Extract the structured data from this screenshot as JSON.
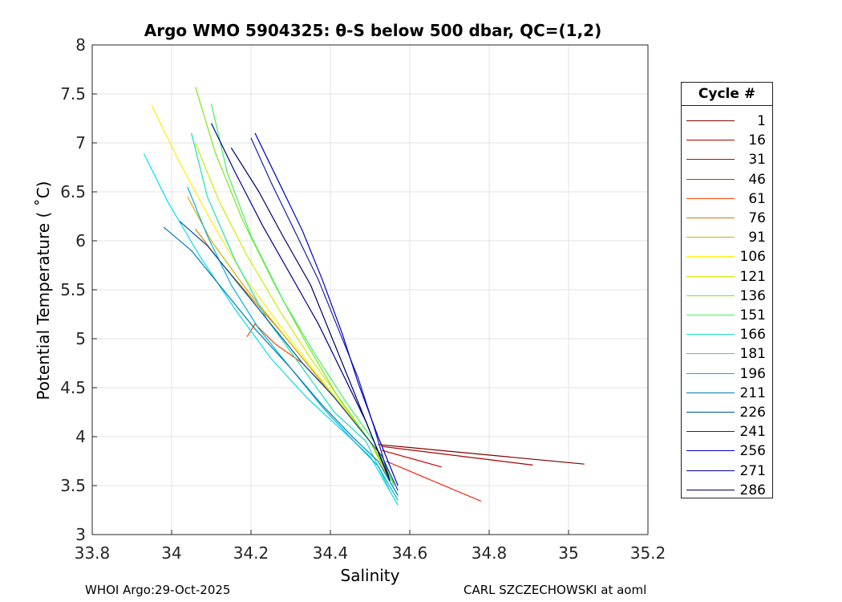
{
  "chart_data": {
    "type": "line",
    "title": "Argo WMO 5904325: θ-S below 500 dbar,  QC=(1,2)",
    "xlabel": "Salinity",
    "ylabel": "Potential Temperature ( ˚C)",
    "xlim": [
      33.8,
      35.2
    ],
    "ylim": [
      3,
      8
    ],
    "xticks": [
      "33.8",
      "34",
      "34.2",
      "34.4",
      "34.6",
      "34.8",
      "35",
      "35.2"
    ],
    "yticks": [
      "3",
      "3.5",
      "4",
      "4.5",
      "5",
      "5.5",
      "6",
      "6.5",
      "7",
      "7.5",
      "8"
    ],
    "grid": true,
    "legend": {
      "title": "Cycle #",
      "placement": "right",
      "entries": [
        {
          "label": "1",
          "color": "#7f0000"
        },
        {
          "label": "16",
          "color": "#a80000"
        },
        {
          "label": "31",
          "color": "#d20000"
        },
        {
          "label": "46",
          "color": "#f81a00"
        },
        {
          "label": "61",
          "color": "#ff4400"
        },
        {
          "label": "76",
          "color": "#d77f00"
        },
        {
          "label": "91",
          "color": "#d4b000"
        },
        {
          "label": "106",
          "color": "#ffee00"
        },
        {
          "label": "121",
          "color": "#c8f000"
        },
        {
          "label": "136",
          "color": "#7fe61a"
        },
        {
          "label": "151",
          "color": "#3ef060"
        },
        {
          "label": "166",
          "color": "#1ae0b4"
        },
        {
          "label": "181",
          "color": "#00e0f0"
        },
        {
          "label": "196",
          "color": "#00b0e0"
        },
        {
          "label": "211",
          "color": "#007cb0"
        },
        {
          "label": "226",
          "color": "#0050a0"
        },
        {
          "label": "241",
          "color": "#1a20b0"
        },
        {
          "label": "256",
          "color": "#0000c8"
        },
        {
          "label": "271",
          "color": "#00008f"
        },
        {
          "label": "286",
          "color": "#000060"
        }
      ]
    },
    "series": [
      {
        "name": "1",
        "color": "#7f0000",
        "x": [
          34.52,
          35.04
        ],
        "y": [
          3.92,
          3.72
        ]
      },
      {
        "name": "16",
        "color": "#a80000",
        "x": [
          34.53,
          34.91
        ],
        "y": [
          3.9,
          3.71
        ]
      },
      {
        "name": "31",
        "color": "#d20000",
        "x": [
          34.53,
          34.68
        ],
        "y": [
          3.86,
          3.69
        ]
      },
      {
        "name": "46",
        "color": "#f81a00",
        "x": [
          34.54,
          34.78
        ],
        "y": [
          3.75,
          3.34
        ]
      },
      {
        "name": "61",
        "color": "#ff4400",
        "x": [
          34.19,
          34.21,
          34.26,
          34.33,
          34.4,
          34.45,
          34.5,
          34.55
        ],
        "y": [
          5.02,
          5.15,
          4.95,
          4.75,
          4.45,
          4.2,
          3.95,
          3.62
        ]
      },
      {
        "name": "76",
        "color": "#d77f00",
        "x": [
          34.06,
          34.12,
          34.2,
          34.28,
          34.36,
          34.44,
          34.5,
          34.55
        ],
        "y": [
          6.12,
          5.8,
          5.42,
          5.05,
          4.65,
          4.25,
          3.95,
          3.6
        ]
      },
      {
        "name": "91",
        "color": "#d4b000",
        "x": [
          34.04,
          34.1,
          34.18,
          34.27,
          34.35,
          34.43,
          34.5,
          34.55
        ],
        "y": [
          6.45,
          6.0,
          5.55,
          5.1,
          4.7,
          4.3,
          3.95,
          3.55
        ]
      },
      {
        "name": "106",
        "color": "#ffee00",
        "x": [
          33.95,
          34.02,
          34.1,
          34.18,
          34.27,
          34.35,
          34.43,
          34.5,
          34.55
        ],
        "y": [
          7.38,
          6.8,
          6.2,
          5.65,
          5.15,
          4.72,
          4.32,
          3.95,
          3.58
        ]
      },
      {
        "name": "121",
        "color": "#c8f000",
        "x": [
          34.06,
          34.12,
          34.19,
          34.27,
          34.35,
          34.43,
          34.5,
          34.56
        ],
        "y": [
          7.0,
          6.4,
          5.85,
          5.3,
          4.8,
          4.35,
          3.95,
          3.55
        ]
      },
      {
        "name": "136",
        "color": "#7fe61a",
        "x": [
          34.06,
          34.11,
          34.18,
          34.26,
          34.34,
          34.42,
          34.5,
          34.56
        ],
        "y": [
          7.57,
          6.9,
          6.2,
          5.55,
          4.95,
          4.4,
          3.95,
          3.52
        ]
      },
      {
        "name": "151",
        "color": "#3ef060",
        "x": [
          34.1,
          34.14,
          34.2,
          34.28,
          34.36,
          34.44,
          34.51,
          34.56
        ],
        "y": [
          7.4,
          6.7,
          6.05,
          5.4,
          4.85,
          4.35,
          3.95,
          3.5
        ]
      },
      {
        "name": "166",
        "color": "#1ae0b4",
        "x": [
          34.05,
          34.09,
          34.16,
          34.24,
          34.33,
          34.41,
          34.49,
          34.55
        ],
        "y": [
          7.1,
          6.45,
          5.8,
          5.2,
          4.7,
          4.25,
          3.95,
          3.45
        ]
      },
      {
        "name": "181",
        "color": "#00e0f0",
        "x": [
          33.93,
          33.99,
          34.07,
          34.16,
          34.25,
          34.34,
          34.42,
          34.5,
          34.57
        ],
        "y": [
          6.89,
          6.4,
          5.85,
          5.3,
          4.8,
          4.4,
          4.1,
          3.8,
          3.3
        ]
      },
      {
        "name": "196",
        "color": "#00b0e0",
        "x": [
          34.04,
          34.09,
          34.15,
          34.22,
          34.3,
          34.38,
          34.46,
          34.52,
          34.57
        ],
        "y": [
          6.55,
          6.05,
          5.55,
          5.1,
          4.7,
          4.3,
          3.95,
          3.7,
          3.35
        ]
      },
      {
        "name": "211",
        "color": "#007cb0",
        "x": [
          33.98,
          34.05,
          34.13,
          34.21,
          34.3,
          34.38,
          34.46,
          34.52,
          34.57
        ],
        "y": [
          6.14,
          5.9,
          5.5,
          5.1,
          4.7,
          4.32,
          3.98,
          3.75,
          3.4
        ]
      },
      {
        "name": "226",
        "color": "#0050a0",
        "x": [
          34.02,
          34.09,
          34.17,
          34.25,
          34.33,
          34.41,
          34.48,
          34.53,
          34.57
        ],
        "y": [
          6.2,
          5.95,
          5.55,
          5.15,
          4.75,
          4.4,
          4.05,
          3.8,
          3.45
        ]
      },
      {
        "name": "241",
        "color": "#1a20b0",
        "x": [
          34.2,
          34.25,
          34.31,
          34.37,
          34.42,
          34.47,
          34.51,
          34.55
        ],
        "y": [
          7.05,
          6.6,
          6.1,
          5.6,
          5.1,
          4.6,
          4.1,
          3.55
        ]
      },
      {
        "name": "256",
        "color": "#0000c8",
        "x": [
          34.21,
          34.27,
          34.33,
          34.38,
          34.43,
          34.47,
          34.52,
          34.57
        ],
        "y": [
          7.1,
          6.6,
          6.1,
          5.6,
          5.05,
          4.55,
          4.0,
          3.5
        ]
      },
      {
        "name": "271",
        "color": "#00008f",
        "x": [
          34.1,
          34.16,
          34.23,
          34.3,
          34.37,
          34.43,
          34.49,
          34.54
        ],
        "y": [
          7.2,
          6.7,
          6.15,
          5.65,
          5.15,
          4.65,
          4.15,
          3.65
        ]
      },
      {
        "name": "286",
        "color": "#000060",
        "x": [
          34.15,
          34.22,
          34.28,
          34.35,
          34.4,
          34.45,
          34.5,
          34.55
        ],
        "y": [
          6.95,
          6.5,
          6.05,
          5.55,
          5.05,
          4.55,
          4.05,
          3.55
        ]
      }
    ]
  },
  "footer": {
    "left": "WHOI Argo:29-Oct-2025",
    "right": "CARL SZCZECHOWSKI at aoml"
  }
}
